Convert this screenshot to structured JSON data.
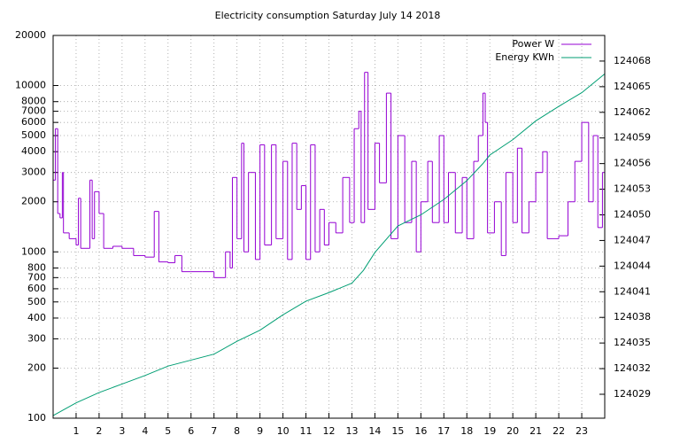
{
  "chart_data": {
    "type": "line",
    "title": "Electricity consumption Saturday July 14 2018",
    "xlim": [
      0,
      24
    ],
    "xticks": [
      1,
      2,
      3,
      4,
      5,
      6,
      7,
      8,
      9,
      10,
      11,
      12,
      13,
      14,
      15,
      16,
      17,
      18,
      19,
      20,
      21,
      22,
      23
    ],
    "ylim": [
      100,
      20000
    ],
    "yscale": "log",
    "yticks": [
      100,
      200,
      300,
      400,
      500,
      600,
      700,
      800,
      1000,
      2000,
      3000,
      4000,
      5000,
      6000,
      7000,
      8000,
      10000,
      20000
    ],
    "y2lim": [
      124026.2,
      124071
    ],
    "y2ticks": [
      124029,
      124032,
      124035,
      124038,
      124041,
      124044,
      124047,
      124050,
      124053,
      124056,
      124059,
      124062,
      124065,
      124068
    ],
    "grid": true,
    "legend": "top-right",
    "series": [
      {
        "name": "Power W",
        "color": "#9400d3",
        "step": true,
        "x": [
          0,
          0.1,
          0.2,
          0.3,
          0.4,
          0.45,
          0.7,
          1.0,
          1.1,
          1.2,
          1.6,
          1.7,
          1.8,
          2.0,
          2.2,
          2.6,
          3.0,
          3.5,
          4.0,
          4.4,
          4.6,
          5.0,
          5.3,
          5.6,
          6.0,
          6.5,
          7.0,
          7.5,
          7.7,
          7.8,
          8.0,
          8.2,
          8.3,
          8.5,
          8.8,
          9.0,
          9.2,
          9.5,
          9.7,
          10.0,
          10.2,
          10.4,
          10.6,
          10.8,
          11.0,
          11.2,
          11.4,
          11.6,
          11.8,
          12.0,
          12.3,
          12.6,
          12.9,
          13.1,
          13.3,
          13.4,
          13.55,
          13.7,
          14.0,
          14.2,
          14.5,
          14.7,
          15.0,
          15.3,
          15.6,
          15.8,
          16.0,
          16.3,
          16.5,
          16.8,
          17.0,
          17.2,
          17.5,
          17.8,
          18.0,
          18.3,
          18.5,
          18.7,
          18.8,
          18.9,
          19.2,
          19.5,
          19.7,
          20.0,
          20.2,
          20.4,
          20.7,
          21.0,
          21.3,
          21.5,
          22.0,
          22.4,
          22.7,
          23.0,
          23.3,
          23.5,
          23.7,
          23.9
        ],
        "values": [
          2700,
          5500,
          1700,
          1600,
          3000,
          1300,
          1200,
          1100,
          2100,
          1050,
          2700,
          1200,
          2300,
          1700,
          1050,
          1080,
          1050,
          950,
          930,
          1750,
          870,
          860,
          950,
          760,
          760,
          760,
          700,
          1000,
          800,
          2800,
          1200,
          4500,
          1000,
          3000,
          900,
          4400,
          1100,
          4400,
          1200,
          3500,
          900,
          4500,
          1800,
          2500,
          900,
          4400,
          1000,
          1800,
          1100,
          1500,
          1300,
          2800,
          1500,
          5500,
          7000,
          1500,
          12000,
          1800,
          4500,
          2600,
          9000,
          1200,
          5000,
          1500,
          3500,
          1000,
          2000,
          3500,
          1500,
          5000,
          1500,
          3000,
          1300,
          2800,
          1200,
          3500,
          5000,
          9000,
          6000,
          1300,
          2000,
          950,
          3000,
          1500,
          4200,
          1300,
          2000,
          3000,
          4000,
          1200,
          1250,
          2000,
          3500,
          6000,
          2000,
          5000,
          1400,
          3000
        ]
      },
      {
        "name": "Energy KWh",
        "color": "#009e73",
        "axis": "y2",
        "x": [
          0,
          1,
          2,
          3,
          4,
          5,
          6,
          7,
          8,
          9,
          10,
          11,
          12,
          13,
          13.5,
          14,
          15,
          16,
          17,
          18,
          18.7,
          19,
          20,
          21,
          22,
          23,
          24
        ],
        "values": [
          124026.5,
          124028,
          124029.2,
          124030.2,
          124031.2,
          124032.3,
          124033,
          124033.7,
          124035.2,
          124036.5,
          124038.3,
          124039.9,
          124040.9,
          124042,
          124043.5,
          124045.6,
          124048.7,
          124050,
          124051.8,
          124054,
          124056,
          124057,
          124058.8,
          124061,
          124062.7,
          124064.3,
          124066.5
        ]
      }
    ]
  }
}
